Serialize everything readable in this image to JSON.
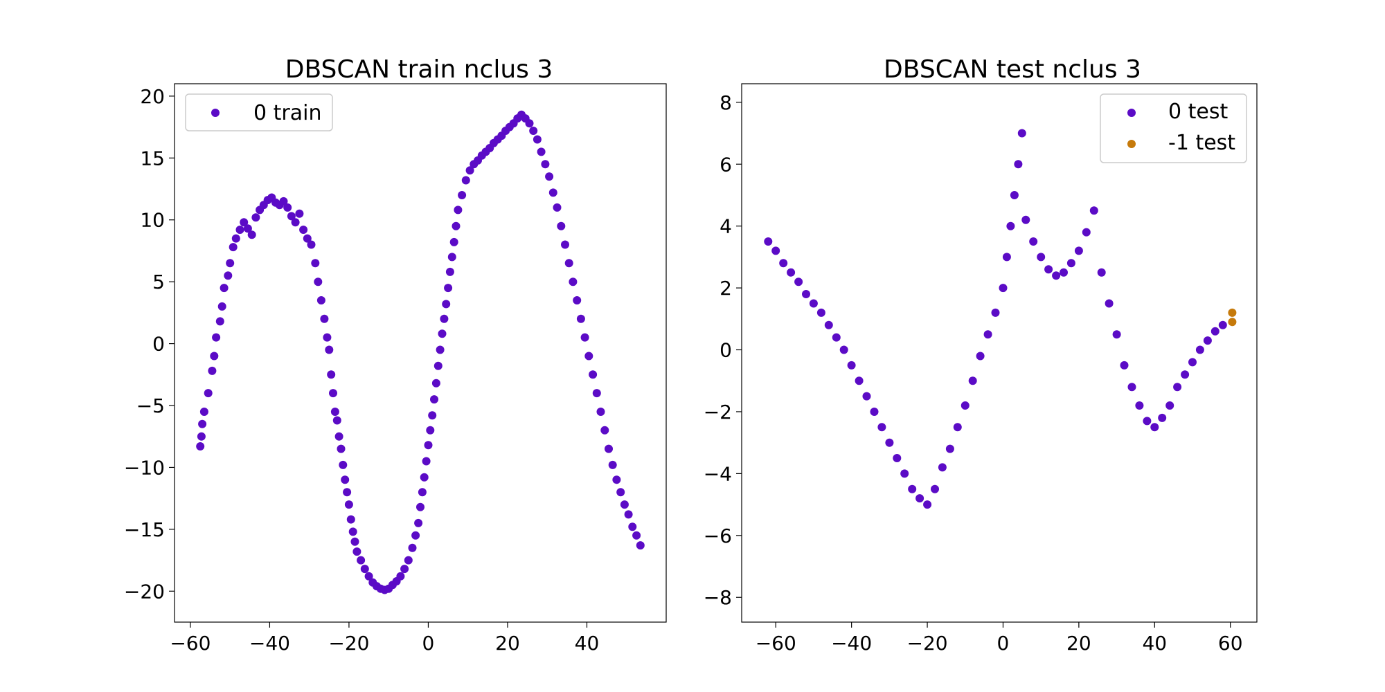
{
  "chart_data": [
    {
      "type": "scatter",
      "title": "DBSCAN train nclus 3",
      "xlabel": "",
      "ylabel": "",
      "xlim": [
        -64,
        60
      ],
      "ylim": [
        -22.5,
        21
      ],
      "xticks": [
        -60,
        -40,
        -20,
        0,
        20,
        40
      ],
      "yticks": [
        -20,
        -15,
        -10,
        -5,
        0,
        5,
        10,
        15,
        20
      ],
      "xtick_labels": [
        "−60",
        "−40",
        "−20",
        "0",
        "20",
        "40"
      ],
      "ytick_labels": [
        "−20",
        "−15",
        "−10",
        "−5",
        "0",
        "5",
        "10",
        "15",
        "20"
      ],
      "grid": false,
      "legend_position": "upper left",
      "series": [
        {
          "name": "0 train",
          "color": "#5b0bc6",
          "points": [
            [
              -57.5,
              -8.3
            ],
            [
              -57.2,
              -7.5
            ],
            [
              -57,
              -6.5
            ],
            [
              -56.5,
              -5.5
            ],
            [
              -55.5,
              -4
            ],
            [
              -54.5,
              -2.2
            ],
            [
              -54,
              -1
            ],
            [
              -53.5,
              0.5
            ],
            [
              -52.5,
              1.8
            ],
            [
              -52,
              3
            ],
            [
              -51.5,
              4.5
            ],
            [
              -50.5,
              5.5
            ],
            [
              -50,
              6.5
            ],
            [
              -49.2,
              7.8
            ],
            [
              -48.5,
              8.5
            ],
            [
              -47.5,
              9.2
            ],
            [
              -46.5,
              9.8
            ],
            [
              -45.5,
              9.3
            ],
            [
              -44.5,
              8.8
            ],
            [
              -43.5,
              10.2
            ],
            [
              -42.5,
              10.8
            ],
            [
              -41.5,
              11.2
            ],
            [
              -40.5,
              11.6
            ],
            [
              -39.5,
              11.8
            ],
            [
              -38.5,
              11.4
            ],
            [
              -37.5,
              11.2
            ],
            [
              -36.5,
              11.5
            ],
            [
              -35.5,
              11.0
            ],
            [
              -34.5,
              10.3
            ],
            [
              -33.5,
              9.8
            ],
            [
              -32.5,
              10.5
            ],
            [
              -31.5,
              9.2
            ],
            [
              -30.5,
              8.5
            ],
            [
              -29.5,
              8.0
            ],
            [
              -28.5,
              6.5
            ],
            [
              -27.8,
              5.0
            ],
            [
              -27.0,
              3.5
            ],
            [
              -26.2,
              2.0
            ],
            [
              -25.5,
              0.5
            ],
            [
              -25,
              -0.5
            ],
            [
              -24.5,
              -2.5
            ],
            [
              -24,
              -4
            ],
            [
              -23.5,
              -5.5
            ],
            [
              -23,
              -6.2
            ],
            [
              -22.5,
              -7.5
            ],
            [
              -22,
              -8.5
            ],
            [
              -21.5,
              -9.8
            ],
            [
              -21,
              -11
            ],
            [
              -20.5,
              -12
            ],
            [
              -20,
              -13
            ],
            [
              -19.5,
              -14.2
            ],
            [
              -19,
              -15.2
            ],
            [
              -18.5,
              -16
            ],
            [
              -18,
              -16.8
            ],
            [
              -17,
              -17.5
            ],
            [
              -16,
              -18.2
            ],
            [
              -15,
              -18.8
            ],
            [
              -14,
              -19.3
            ],
            [
              -13,
              -19.6
            ],
            [
              -12,
              -19.8
            ],
            [
              -11,
              -19.9
            ],
            [
              -10,
              -19.8
            ],
            [
              -9,
              -19.5
            ],
            [
              -8,
              -19.2
            ],
            [
              -7,
              -18.8
            ],
            [
              -6,
              -18.2
            ],
            [
              -5,
              -17.5
            ],
            [
              -4,
              -16.5
            ],
            [
              -3.2,
              -15.5
            ],
            [
              -2.5,
              -14.5
            ],
            [
              -2,
              -13.2
            ],
            [
              -1.5,
              -12
            ],
            [
              -1,
              -10.8
            ],
            [
              -0.5,
              -9.5
            ],
            [
              0,
              -8.2
            ],
            [
              0.5,
              -7
            ],
            [
              1,
              -5.8
            ],
            [
              1.5,
              -4.5
            ],
            [
              2,
              -3.2
            ],
            [
              2.5,
              -1.8
            ],
            [
              3,
              -0.5
            ],
            [
              3.5,
              0.8
            ],
            [
              4,
              2
            ],
            [
              4.5,
              3.2
            ],
            [
              5,
              4.5
            ],
            [
              5.5,
              5.8
            ],
            [
              6,
              7
            ],
            [
              6.5,
              8.2
            ],
            [
              7,
              9.5
            ],
            [
              7.5,
              10.8
            ],
            [
              8.5,
              12
            ],
            [
              9.5,
              13.2
            ],
            [
              10.5,
              14
            ],
            [
              11.5,
              14.5
            ],
            [
              12.5,
              14.8
            ],
            [
              13.5,
              15.2
            ],
            [
              14.5,
              15.5
            ],
            [
              15.5,
              15.8
            ],
            [
              16.5,
              16.2
            ],
            [
              17.5,
              16.5
            ],
            [
              18.5,
              16.8
            ],
            [
              19.5,
              17.2
            ],
            [
              20.5,
              17.5
            ],
            [
              21.5,
              17.8
            ],
            [
              22.5,
              18.2
            ],
            [
              23.5,
              18.5
            ],
            [
              24.5,
              18.2
            ],
            [
              25.5,
              17.8
            ],
            [
              26.5,
              17.2
            ],
            [
              27.5,
              16.5
            ],
            [
              28.5,
              15.5
            ],
            [
              29.5,
              14.5
            ],
            [
              30.5,
              13.5
            ],
            [
              31.5,
              12.2
            ],
            [
              32.5,
              11
            ],
            [
              33.5,
              9.5
            ],
            [
              34.5,
              8
            ],
            [
              35.5,
              6.5
            ],
            [
              36.5,
              5
            ],
            [
              37.5,
              3.5
            ],
            [
              38.5,
              2
            ],
            [
              39.5,
              0.5
            ],
            [
              40.5,
              -1
            ],
            [
              41.5,
              -2.5
            ],
            [
              42.5,
              -4
            ],
            [
              43.5,
              -5.5
            ],
            [
              44.5,
              -7
            ],
            [
              45.5,
              -8.5
            ],
            [
              46.5,
              -9.8
            ],
            [
              47.5,
              -11
            ],
            [
              48.5,
              -12
            ],
            [
              49.5,
              -13
            ],
            [
              50.5,
              -13.8
            ],
            [
              51.5,
              -14.8
            ],
            [
              52.5,
              -15.5
            ],
            [
              53.5,
              -16.3
            ]
          ]
        }
      ]
    },
    {
      "type": "scatter",
      "title": "DBSCAN test nclus 3",
      "xlabel": "",
      "ylabel": "",
      "xlim": [
        -69,
        67
      ],
      "ylim": [
        -8.8,
        8.6
      ],
      "xticks": [
        -60,
        -40,
        -20,
        0,
        20,
        40,
        60
      ],
      "yticks": [
        -8,
        -6,
        -4,
        -2,
        0,
        2,
        4,
        6,
        8
      ],
      "xtick_labels": [
        "−60",
        "−40",
        "−20",
        "0",
        "20",
        "40",
        "60"
      ],
      "ytick_labels": [
        "−8",
        "−6",
        "−4",
        "−2",
        "0",
        "2",
        "4",
        "6",
        "8"
      ],
      "grid": false,
      "legend_position": "upper right",
      "series": [
        {
          "name": "0 test",
          "color": "#5b0bc6",
          "points": [
            [
              -62,
              3.5
            ],
            [
              -60,
              3.2
            ],
            [
              -58,
              2.8
            ],
            [
              -56,
              2.5
            ],
            [
              -54,
              2.2
            ],
            [
              -52,
              1.8
            ],
            [
              -50,
              1.5
            ],
            [
              -48,
              1.2
            ],
            [
              -46,
              0.8
            ],
            [
              -44,
              0.4
            ],
            [
              -42,
              0
            ],
            [
              -40,
              -0.5
            ],
            [
              -38,
              -1
            ],
            [
              -36,
              -1.5
            ],
            [
              -34,
              -2
            ],
            [
              -32,
              -2.5
            ],
            [
              -30,
              -3
            ],
            [
              -28,
              -3.5
            ],
            [
              -26,
              -4
            ],
            [
              -24,
              -4.5
            ],
            [
              -22,
              -4.8
            ],
            [
              -20,
              -5
            ],
            [
              -18,
              -4.5
            ],
            [
              -16,
              -3.8
            ],
            [
              -14,
              -3.2
            ],
            [
              -12,
              -2.5
            ],
            [
              -10,
              -1.8
            ],
            [
              -8,
              -1
            ],
            [
              -6,
              -0.2
            ],
            [
              -4,
              0.5
            ],
            [
              -2,
              1.2
            ],
            [
              0,
              2
            ],
            [
              1,
              3
            ],
            [
              2,
              4
            ],
            [
              3,
              5
            ],
            [
              4,
              6
            ],
            [
              5,
              7
            ],
            [
              6,
              4.2
            ],
            [
              8,
              3.5
            ],
            [
              10,
              3
            ],
            [
              12,
              2.6
            ],
            [
              14,
              2.4
            ],
            [
              16,
              2.5
            ],
            [
              18,
              2.8
            ],
            [
              20,
              3.2
            ],
            [
              22,
              3.8
            ],
            [
              24,
              4.5
            ],
            [
              26,
              2.5
            ],
            [
              28,
              1.5
            ],
            [
              30,
              0.5
            ],
            [
              32,
              -0.5
            ],
            [
              34,
              -1.2
            ],
            [
              36,
              -1.8
            ],
            [
              38,
              -2.3
            ],
            [
              40,
              -2.5
            ],
            [
              42,
              -2.2
            ],
            [
              44,
              -1.8
            ],
            [
              46,
              -1.2
            ],
            [
              48,
              -0.8
            ],
            [
              50,
              -0.4
            ],
            [
              52,
              0
            ],
            [
              54,
              0.3
            ],
            [
              56,
              0.6
            ],
            [
              58,
              0.8
            ]
          ]
        },
        {
          "name": "-1 test",
          "color": "#c67a0b",
          "points": [
            [
              60.5,
              1.2
            ],
            [
              60.5,
              0.9
            ]
          ]
        }
      ]
    }
  ]
}
